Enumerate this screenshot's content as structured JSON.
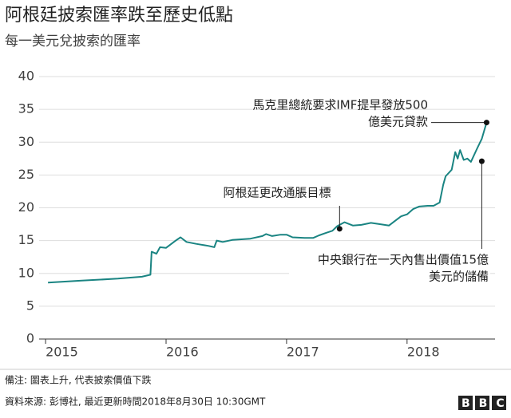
{
  "chart_data": {
    "type": "line",
    "title": "阿根廷披索匯率跌至歷史低點",
    "subtitle": "每一美元兌披索的匯率",
    "x": [
      2015.02,
      2015.3,
      2015.6,
      2015.8,
      2015.87,
      2015.88,
      2015.92,
      2015.95,
      2016.0,
      2016.08,
      2016.12,
      2016.17,
      2016.25,
      2016.35,
      2016.4,
      2016.42,
      2016.47,
      2016.55,
      2016.7,
      2016.8,
      2016.83,
      2016.88,
      2016.95,
      2017.0,
      2017.05,
      2017.15,
      2017.22,
      2017.27,
      2017.33,
      2017.38,
      2017.42,
      2017.48,
      2017.55,
      2017.62,
      2017.7,
      2017.78,
      2017.85,
      2017.9,
      2017.95,
      2018.0,
      2018.05,
      2018.1,
      2018.17,
      2018.22,
      2018.27,
      2018.3,
      2018.32,
      2018.37,
      2018.4,
      2018.42,
      2018.44,
      2018.47,
      2018.5,
      2018.53,
      2018.58,
      2018.62,
      2018.66
    ],
    "series": [
      {
        "name": "披索",
        "color": "#1a8482",
        "values": [
          8.6,
          8.9,
          9.2,
          9.5,
          9.8,
          13.3,
          13.0,
          14.0,
          13.9,
          15.0,
          15.5,
          14.8,
          14.5,
          14.2,
          14.0,
          15.0,
          14.8,
          15.1,
          15.3,
          15.7,
          16.0,
          15.7,
          15.9,
          15.9,
          15.5,
          15.4,
          15.4,
          15.8,
          16.2,
          16.5,
          17.2,
          17.8,
          17.3,
          17.4,
          17.7,
          17.5,
          17.3,
          18.0,
          18.7,
          19.0,
          19.8,
          20.2,
          20.3,
          20.3,
          20.8,
          23.5,
          24.8,
          25.8,
          28.5,
          27.5,
          28.8,
          27.3,
          27.5,
          27.0,
          29.0,
          30.5,
          33.0
        ]
      }
    ],
    "xlim": [
      2014.92,
      2018.73
    ],
    "xticks": [
      2015,
      2016,
      2017,
      2018
    ],
    "ylim": [
      0,
      40
    ],
    "yticks": [
      0,
      5,
      10,
      15,
      20,
      25,
      30,
      35,
      40
    ],
    "grid": true,
    "annotations": [
      {
        "x": 2018.66,
        "y": 33.0,
        "lines": [
          "馬克里總統要求IMF提早發放500",
          "億美元貸款"
        ]
      },
      {
        "x": 2017.44,
        "y": 16.8,
        "lines": [
          "阿根廷更改通脹目標"
        ]
      },
      {
        "x": 2018.62,
        "y": 27.1,
        "lines": [
          "中央銀行在一天內售出價值15億",
          "美元的儲備"
        ]
      }
    ],
    "note": "備注: 圖表上升, 代表披索價值下跌",
    "source": "資料來源: 彭博社, 最近更新時間2018年8月30日 10:30GMT",
    "logo": "BBC"
  }
}
